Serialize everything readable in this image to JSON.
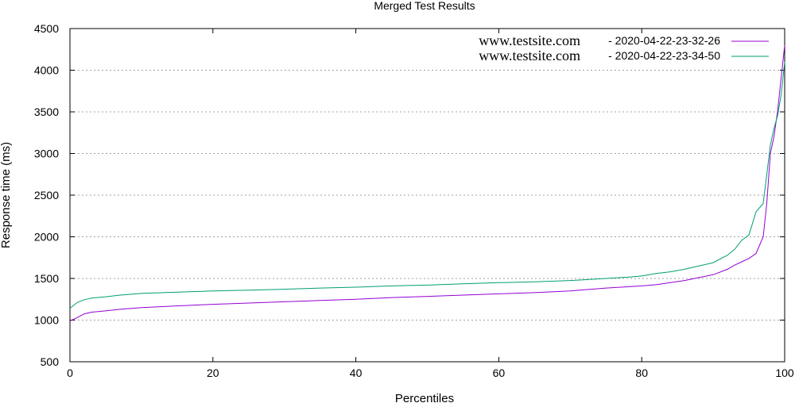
{
  "chart_data": {
    "type": "line",
    "title": "Merged Test Results",
    "xlabel": "Percentiles",
    "ylabel": "Response time (ms)",
    "xlim": [
      0,
      100
    ],
    "ylim": [
      500,
      4500
    ],
    "x_ticks": [
      0,
      20,
      40,
      60,
      80,
      100
    ],
    "y_ticks": [
      500,
      1000,
      1500,
      2000,
      2500,
      3000,
      3500,
      4000,
      4500
    ],
    "grid": "horizontal dotted",
    "legend_position": "top-right",
    "x": [
      0,
      1,
      2,
      3,
      5,
      7,
      10,
      15,
      20,
      25,
      30,
      35,
      40,
      45,
      50,
      55,
      60,
      65,
      70,
      72,
      75,
      78,
      80,
      82,
      84,
      86,
      88,
      90,
      92,
      93,
      94,
      95,
      96,
      97,
      97.5,
      98,
      98.5,
      99,
      99.5,
      100
    ],
    "series": [
      {
        "name_site": "www.testsite.com",
        "name_date": "- 2020-04-22-23-32-26",
        "color": "#9400d3",
        "values": [
          990,
          1030,
          1075,
          1095,
          1110,
          1130,
          1150,
          1170,
          1190,
          1205,
          1220,
          1235,
          1250,
          1270,
          1285,
          1300,
          1315,
          1330,
          1350,
          1365,
          1385,
          1400,
          1410,
          1425,
          1450,
          1475,
          1510,
          1545,
          1610,
          1660,
          1700,
          1740,
          1800,
          2000,
          2400,
          3000,
          3200,
          3500,
          3900,
          4300
        ]
      },
      {
        "name_site": "www.testsite.com",
        "name_date": "- 2020-04-22-23-34-50",
        "color": "#009e73",
        "values": [
          1140,
          1210,
          1245,
          1265,
          1280,
          1300,
          1320,
          1335,
          1350,
          1360,
          1370,
          1385,
          1395,
          1410,
          1420,
          1435,
          1450,
          1460,
          1475,
          1485,
          1500,
          1515,
          1530,
          1560,
          1580,
          1610,
          1650,
          1690,
          1780,
          1850,
          1960,
          2020,
          2300,
          2400,
          2750,
          3100,
          3300,
          3450,
          3700,
          4100
        ]
      }
    ]
  }
}
